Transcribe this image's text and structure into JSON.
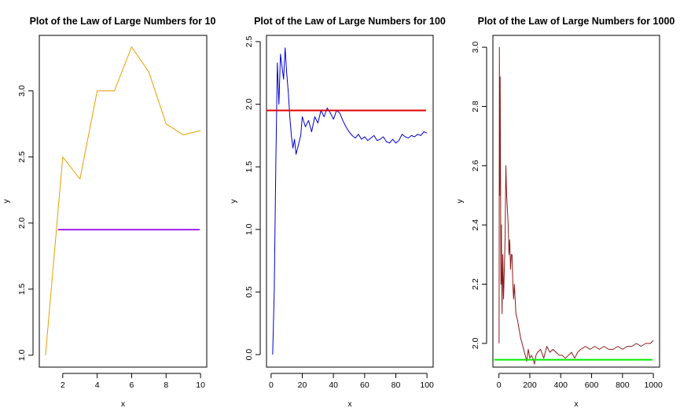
{
  "chart_data": [
    {
      "type": "line",
      "title": "Plot of the Law of Large Numbers for 10",
      "xlabel": "x",
      "ylabel": "y",
      "xlim": [
        0.64,
        10.36
      ],
      "ylim": [
        0.91,
        3.42
      ],
      "xticks": [
        2,
        4,
        6,
        8,
        10
      ],
      "yticks": [
        1.0,
        1.5,
        2.0,
        2.5,
        3.0
      ],
      "xtick_labels": [
        "2",
        "4",
        "6",
        "8",
        "10"
      ],
      "ytick_labels": [
        "1.0",
        "1.5",
        "2.0",
        "2.5",
        "3.0"
      ],
      "hline": {
        "y": 1.95,
        "color": "#a020f0"
      },
      "series": [
        {
          "color": "#e69f00",
          "x": [
            1,
            2,
            3,
            4,
            5,
            6,
            7,
            8,
            9,
            10
          ],
          "y": [
            1.0,
            2.5,
            2.333,
            3.0,
            3.0,
            3.333,
            3.143,
            2.75,
            2.667,
            2.7
          ]
        }
      ]
    },
    {
      "type": "line",
      "title": "Plot of the Law of Large Numbers for 100",
      "xlabel": "x",
      "ylabel": "y",
      "xlim": [
        -2.96,
        103.96
      ],
      "ylim": [
        -0.1,
        2.55
      ],
      "xticks": [
        0,
        20,
        40,
        60,
        80,
        100
      ],
      "yticks": [
        0.0,
        0.5,
        1.0,
        1.5,
        2.0,
        2.5
      ],
      "xtick_labels": [
        "0",
        "20",
        "40",
        "60",
        "80",
        "100"
      ],
      "ytick_labels": [
        "0.0",
        "0.5",
        "1.0",
        "1.5",
        "2.0",
        "2.5"
      ],
      "hline": {
        "y": 1.95,
        "color": "#e00000"
      },
      "series": [
        {
          "color": "#0000cd",
          "x": [
            1,
            2,
            3,
            4,
            5,
            6,
            7,
            8,
            9,
            10,
            11,
            12,
            13,
            14,
            15,
            16,
            17,
            18,
            19,
            20,
            22,
            24,
            26,
            28,
            30,
            32,
            34,
            36,
            38,
            40,
            42,
            44,
            46,
            48,
            50,
            52,
            54,
            56,
            58,
            60,
            62,
            64,
            66,
            68,
            70,
            72,
            74,
            76,
            78,
            80,
            82,
            84,
            86,
            88,
            90,
            92,
            94,
            96,
            98,
            100
          ],
          "y": [
            0.0,
            0.5,
            1.5,
            2.33,
            2.0,
            2.4,
            2.3,
            2.2,
            2.45,
            2.25,
            2.1,
            1.9,
            1.75,
            1.65,
            1.72,
            1.6,
            1.65,
            1.7,
            1.75,
            1.9,
            1.82,
            1.87,
            1.78,
            1.9,
            1.85,
            1.95,
            1.9,
            1.97,
            1.93,
            1.88,
            1.95,
            1.93,
            1.87,
            1.82,
            1.78,
            1.75,
            1.73,
            1.76,
            1.72,
            1.74,
            1.71,
            1.73,
            1.75,
            1.71,
            1.72,
            1.74,
            1.7,
            1.69,
            1.72,
            1.69,
            1.71,
            1.76,
            1.74,
            1.73,
            1.75,
            1.74,
            1.76,
            1.75,
            1.78,
            1.77
          ]
        }
      ]
    },
    {
      "type": "line",
      "title": "Plot of the Law of Large Numbers for 1000",
      "xlabel": "x",
      "ylabel": "y",
      "xlim": [
        -39,
        1040
      ],
      "ylim": [
        1.92,
        3.04
      ],
      "xticks": [
        0,
        200,
        400,
        600,
        800,
        1000
      ],
      "yticks": [
        2.0,
        2.2,
        2.4,
        2.6,
        2.8,
        3.0
      ],
      "xtick_labels": [
        "0",
        "200",
        "400",
        "600",
        "800",
        "1000"
      ],
      "ytick_labels": [
        "2.0",
        "2.2",
        "2.4",
        "2.6",
        "2.8",
        "3.0"
      ],
      "hline": {
        "y": 1.945,
        "color": "#00ee00"
      },
      "series": [
        {
          "color": "#8b1a1a",
          "x": [
            1,
            3,
            5,
            8,
            10,
            13,
            16,
            20,
            25,
            30,
            35,
            40,
            45,
            50,
            55,
            60,
            65,
            70,
            75,
            80,
            85,
            90,
            95,
            100,
            110,
            120,
            130,
            140,
            150,
            160,
            170,
            180,
            190,
            200,
            210,
            220,
            230,
            240,
            250,
            270,
            290,
            310,
            330,
            350,
            370,
            390,
            410,
            430,
            450,
            470,
            490,
            510,
            530,
            560,
            590,
            620,
            650,
            680,
            710,
            740,
            770,
            800,
            830,
            860,
            890,
            920,
            950,
            980,
            1000
          ],
          "y": [
            2.0,
            3.0,
            2.5,
            2.9,
            2.6,
            2.2,
            2.4,
            2.1,
            2.3,
            2.15,
            2.25,
            2.35,
            2.6,
            2.5,
            2.45,
            2.4,
            2.3,
            2.35,
            2.25,
            2.3,
            2.3,
            2.2,
            2.15,
            2.2,
            2.1,
            2.08,
            2.05,
            2.02,
            2.0,
            1.98,
            1.96,
            1.94,
            1.98,
            1.95,
            1.96,
            1.95,
            1.93,
            1.96,
            1.97,
            1.98,
            1.95,
            1.99,
            1.97,
            1.98,
            1.97,
            1.96,
            1.96,
            1.95,
            1.96,
            1.97,
            1.95,
            1.97,
            1.98,
            1.99,
            1.98,
            1.99,
            1.98,
            1.99,
            1.98,
            1.98,
            1.99,
            1.98,
            1.99,
            1.99,
            2.0,
            1.99,
            2.0,
            2.0,
            2.01
          ]
        }
      ]
    }
  ]
}
